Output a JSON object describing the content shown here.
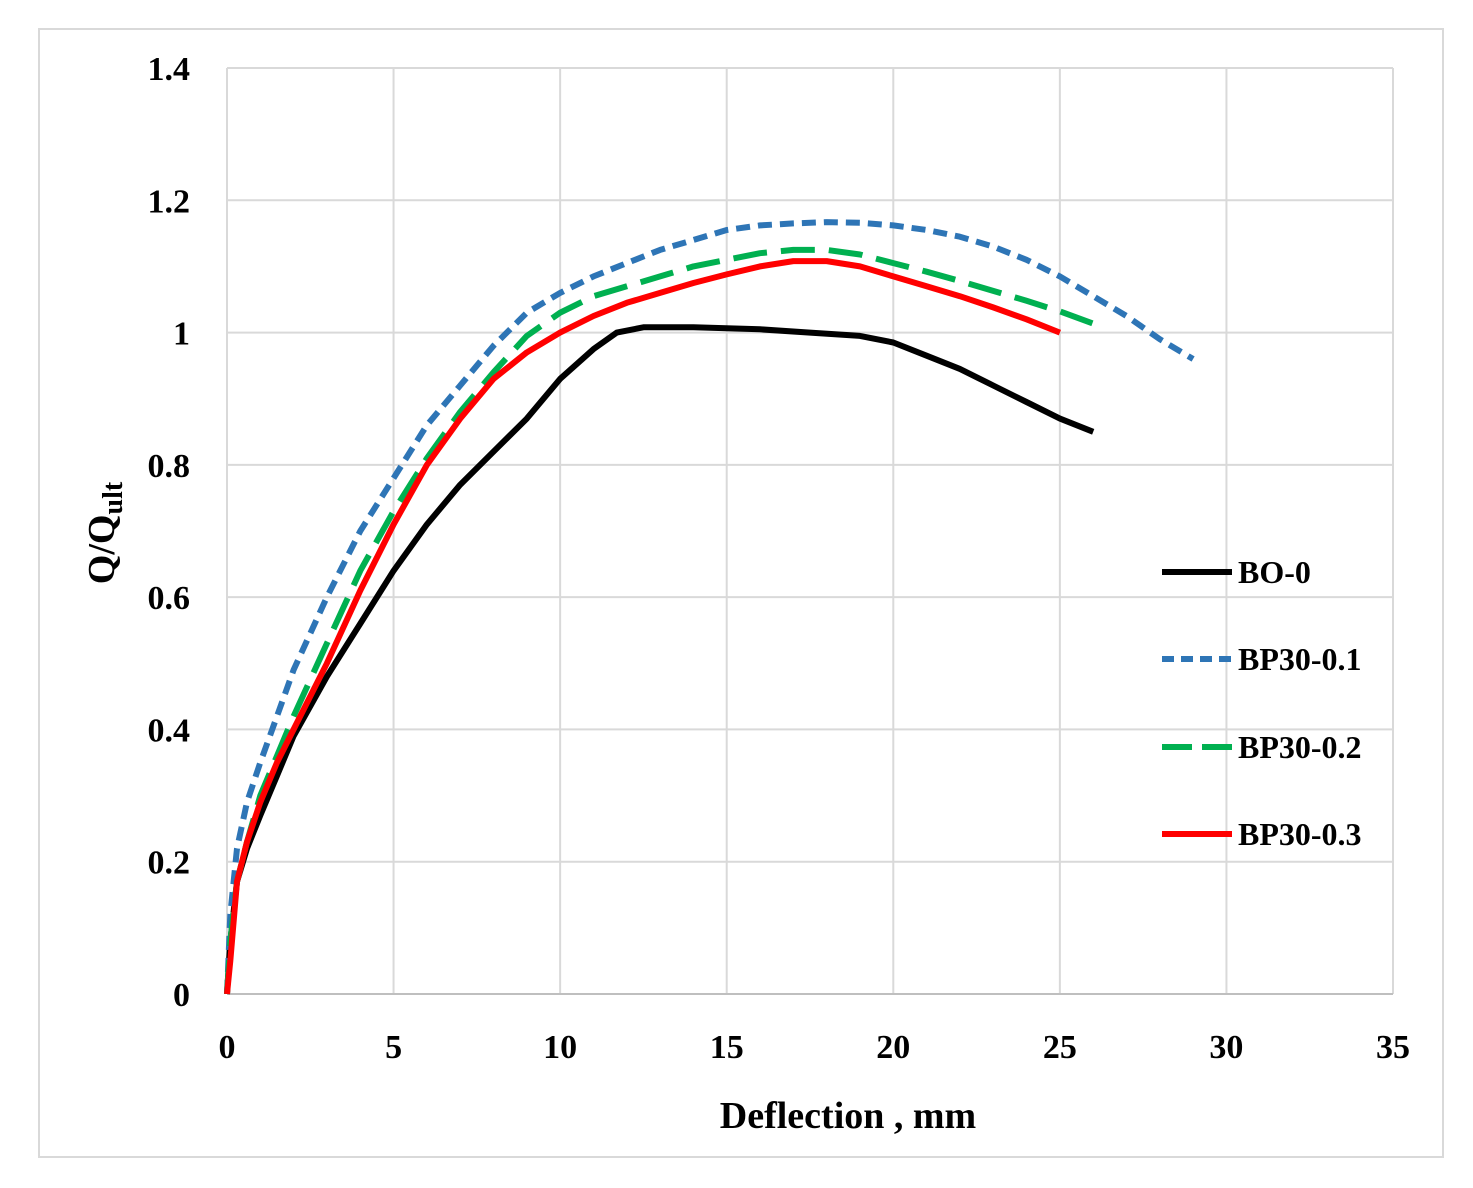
{
  "chart_data": {
    "type": "line",
    "title": "",
    "xlabel": "Deflection , mm",
    "ylabel_main": "Q/Q",
    "ylabel_sub": "ult",
    "xlim": [
      0,
      35
    ],
    "ylim": [
      0,
      1.4
    ],
    "xticks": [
      0,
      5,
      10,
      15,
      20,
      25,
      30,
      35
    ],
    "yticks": [
      0,
      0.2,
      0.4,
      0.6,
      0.8,
      1,
      1.2,
      1.4
    ],
    "xtick_labels": [
      "0",
      "5",
      "10",
      "15",
      "20",
      "25",
      "30",
      "35"
    ],
    "ytick_labels": [
      "0",
      "0.2",
      "0.4",
      "0.6",
      "0.8",
      "1",
      "1.2",
      "1.4"
    ],
    "grid": true,
    "legend_position": "right",
    "series": [
      {
        "name": "BO-0",
        "color": "#000000",
        "style": "solid",
        "x": [
          0,
          0.1,
          0.3,
          0.6,
          1.0,
          1.5,
          2.0,
          3.0,
          4.0,
          5.0,
          6.0,
          7.0,
          8.0,
          9.0,
          10.0,
          11.0,
          11.7,
          12.5,
          14,
          16,
          17.5,
          19,
          20,
          21,
          22,
          23,
          24,
          25,
          26
        ],
        "y": [
          0,
          0.08,
          0.17,
          0.22,
          0.27,
          0.33,
          0.39,
          0.48,
          0.56,
          0.64,
          0.71,
          0.77,
          0.82,
          0.87,
          0.93,
          0.975,
          1.0,
          1.008,
          1.008,
          1.005,
          1.0,
          0.995,
          0.985,
          0.965,
          0.945,
          0.92,
          0.895,
          0.87,
          0.85
        ]
      },
      {
        "name": "BP30-0.1",
        "color": "#2e75b6",
        "style": "dotted",
        "x": [
          0,
          0.1,
          0.3,
          0.6,
          1.0,
          1.5,
          2.0,
          3.0,
          4.0,
          5.0,
          6.0,
          7.0,
          8.0,
          9.0,
          10.0,
          11.0,
          12.0,
          13.0,
          14.0,
          15.0,
          16.0,
          17.0,
          18.0,
          19.0,
          20.0,
          21.0,
          22.0,
          23.0,
          24.0,
          25.0,
          26.0,
          27.0,
          28.0,
          29.0
        ],
        "y": [
          0,
          0.12,
          0.22,
          0.29,
          0.35,
          0.42,
          0.49,
          0.6,
          0.7,
          0.78,
          0.86,
          0.92,
          0.98,
          1.03,
          1.06,
          1.085,
          1.105,
          1.125,
          1.14,
          1.155,
          1.162,
          1.165,
          1.167,
          1.166,
          1.162,
          1.155,
          1.145,
          1.13,
          1.11,
          1.085,
          1.055,
          1.025,
          0.99,
          0.96
        ]
      },
      {
        "name": "BP30-0.2",
        "color": "#00b050",
        "style": "dashed",
        "x": [
          0,
          0.1,
          0.3,
          0.6,
          1.0,
          1.5,
          2.0,
          3.0,
          4.0,
          5.0,
          6.0,
          7.0,
          8.0,
          9.0,
          10.0,
          11.0,
          12.0,
          13.0,
          14.0,
          15.0,
          16.0,
          17.0,
          18.0,
          19.0,
          20.0,
          21.0,
          22.0,
          23.0,
          24.0,
          25.0,
          26.2
        ],
        "y": [
          0,
          0.08,
          0.17,
          0.23,
          0.3,
          0.36,
          0.42,
          0.53,
          0.64,
          0.73,
          0.81,
          0.88,
          0.94,
          0.995,
          1.03,
          1.055,
          1.07,
          1.085,
          1.1,
          1.11,
          1.12,
          1.125,
          1.125,
          1.118,
          1.105,
          1.092,
          1.078,
          1.063,
          1.048,
          1.032,
          1.01
        ]
      },
      {
        "name": "BP30-0.3",
        "color": "#ff0000",
        "style": "solid",
        "x": [
          0,
          0.1,
          0.3,
          0.6,
          1.0,
          1.5,
          2.0,
          3.0,
          4.0,
          5.0,
          6.0,
          7.0,
          8.0,
          9.0,
          10.0,
          11.0,
          12.0,
          13.0,
          14.0,
          15.0,
          16.0,
          17.0,
          18.0,
          19.0,
          20.0,
          21.0,
          22.0,
          23.0,
          24.0,
          25.0
        ],
        "y": [
          0,
          0.05,
          0.17,
          0.23,
          0.29,
          0.35,
          0.4,
          0.5,
          0.61,
          0.71,
          0.8,
          0.87,
          0.93,
          0.97,
          1.0,
          1.025,
          1.045,
          1.06,
          1.075,
          1.088,
          1.1,
          1.108,
          1.108,
          1.1,
          1.085,
          1.07,
          1.055,
          1.038,
          1.02,
          1.0
        ]
      }
    ]
  }
}
